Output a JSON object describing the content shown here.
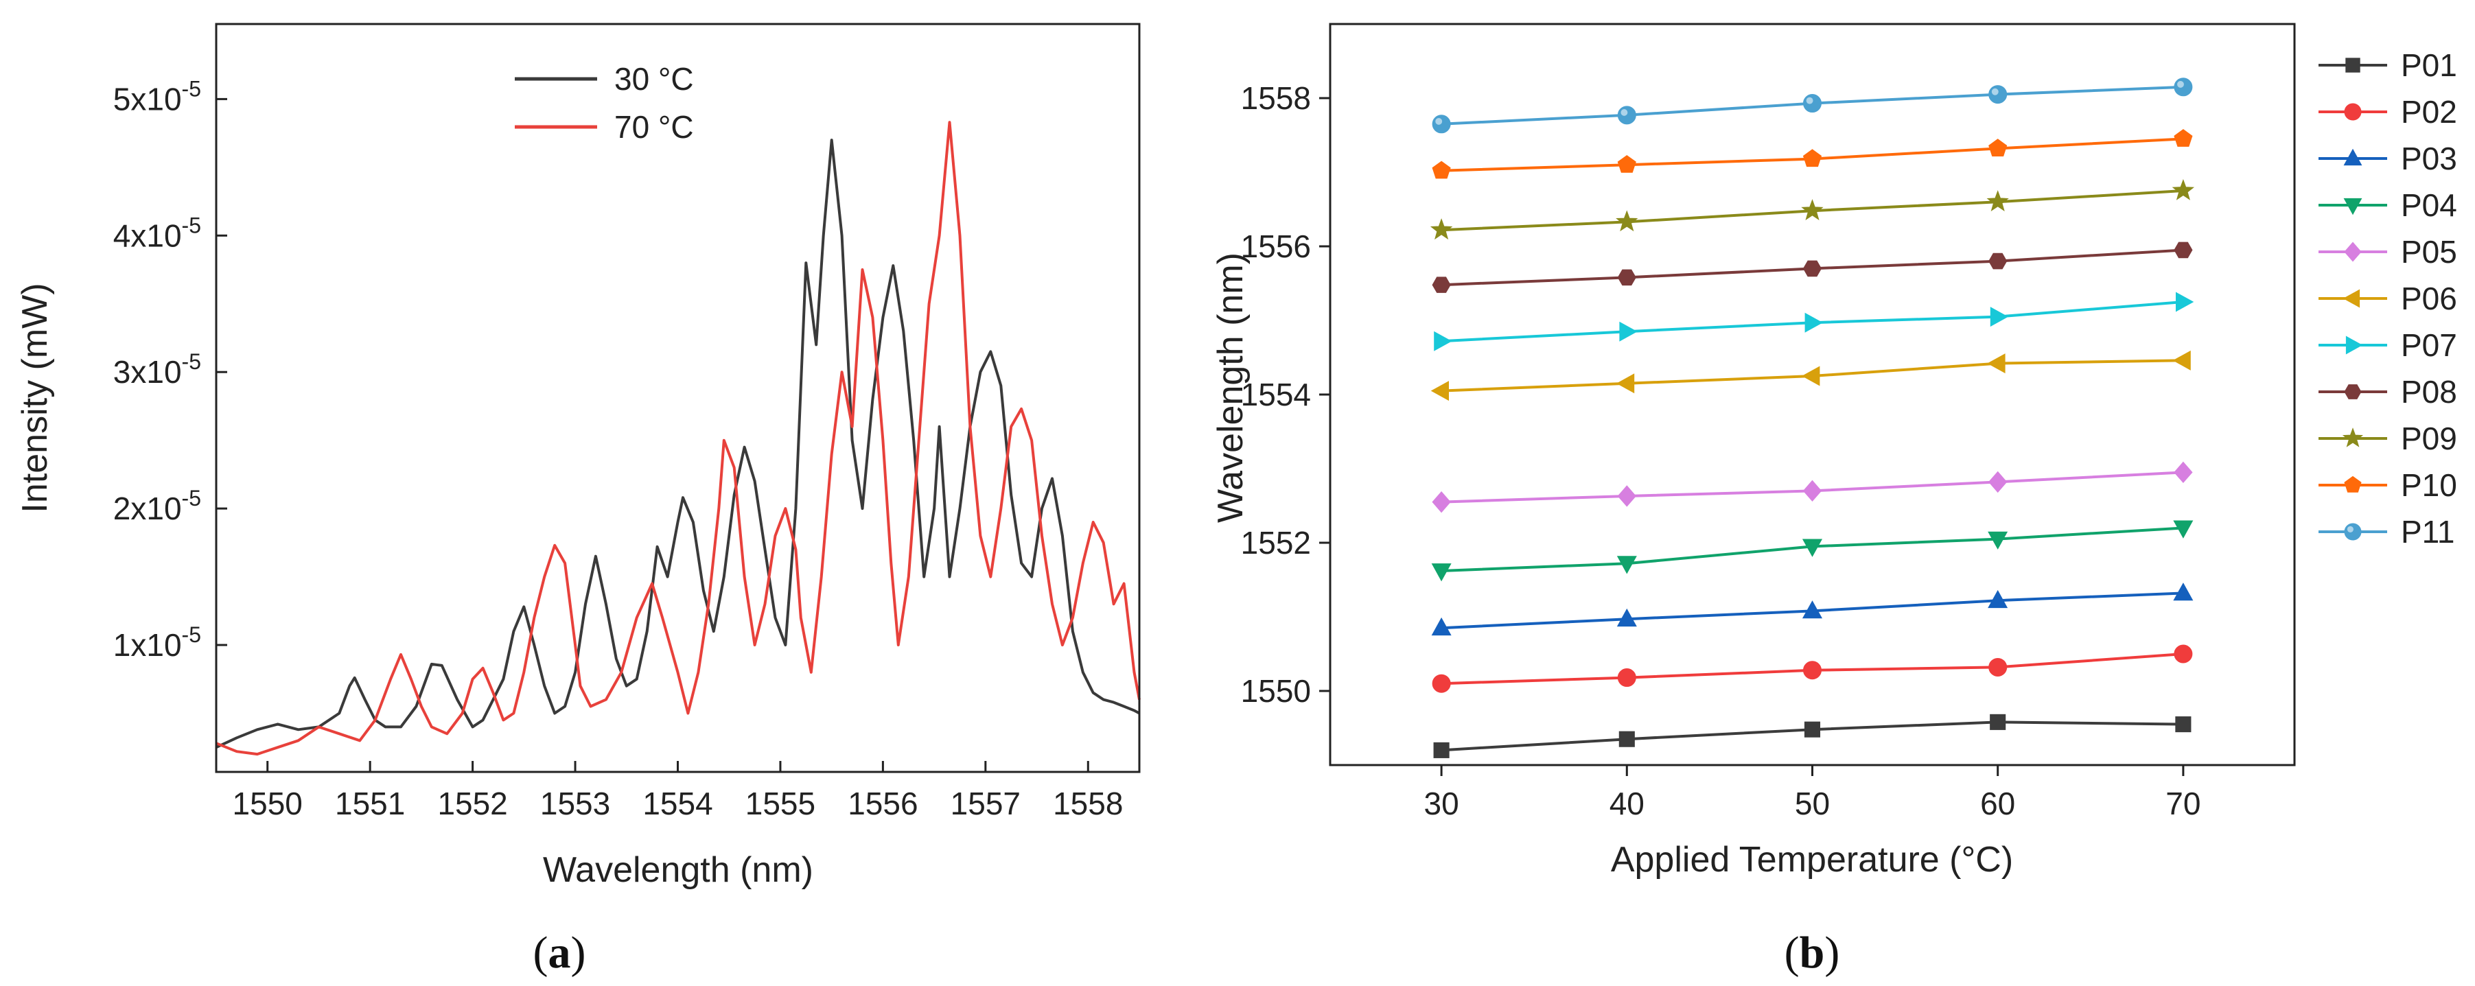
{
  "panels": [
    {
      "label_open": "(",
      "label": "a",
      "label_close": ")",
      "chart_data": {
        "type": "line",
        "title": "",
        "xlabel": "Wavelength (nm)",
        "ylabel": "Intensity (mW)",
        "xlim": [
          1549.5,
          1558.5
        ],
        "ylim": [
          7e-07,
          5.55e-05
        ],
        "xticks": [
          1550,
          1551,
          1552,
          1553,
          1554,
          1555,
          1556,
          1557,
          1558
        ],
        "yticks": [
          {
            "value": 1e-05,
            "mantissa": "1x10",
            "exp": "-5"
          },
          {
            "value": 2e-05,
            "mantissa": "2x10",
            "exp": "-5"
          },
          {
            "value": 3e-05,
            "mantissa": "3x10",
            "exp": "-5"
          },
          {
            "value": 4e-05,
            "mantissa": "4x10",
            "exp": "-5"
          },
          {
            "value": 5e-05,
            "mantissa": "5x10",
            "exp": "-5"
          }
        ],
        "legend_position": "top-center",
        "series": [
          {
            "name": "30 °C",
            "color": "#3a3a3a",
            "x": [
              1549.5,
              1549.7,
              1549.9,
              1550.1,
              1550.3,
              1550.5,
              1550.7,
              1550.8,
              1550.85,
              1550.95,
              1551.05,
              1551.15,
              1551.3,
              1551.45,
              1551.6,
              1551.7,
              1551.85,
              1552.0,
              1552.1,
              1552.2,
              1552.3,
              1552.4,
              1552.5,
              1552.6,
              1552.7,
              1552.8,
              1552.9,
              1553.0,
              1553.1,
              1553.2,
              1553.3,
              1553.4,
              1553.5,
              1553.6,
              1553.7,
              1553.8,
              1553.9,
              1554.0,
              1554.05,
              1554.15,
              1554.25,
              1554.35,
              1554.45,
              1554.55,
              1554.65,
              1554.75,
              1554.85,
              1554.95,
              1555.05,
              1555.15,
              1555.25,
              1555.35,
              1555.42,
              1555.5,
              1555.6,
              1555.7,
              1555.8,
              1555.9,
              1556.0,
              1556.1,
              1556.2,
              1556.3,
              1556.4,
              1556.5,
              1556.55,
              1556.65,
              1556.75,
              1556.85,
              1556.95,
              1557.05,
              1557.15,
              1557.25,
              1557.35,
              1557.45,
              1557.55,
              1557.65,
              1557.75,
              1557.85,
              1557.95,
              1558.05,
              1558.15,
              1558.25,
              1558.35,
              1558.45,
              1558.5
            ],
            "y": [
              2.5e-06,
              3.2e-06,
              3.8e-06,
              4.2e-06,
              3.8e-06,
              4e-06,
              5e-06,
              7e-06,
              7.6e-06,
              6e-06,
              4.5e-06,
              4e-06,
              4e-06,
              5.5e-06,
              8.6e-06,
              8.5e-06,
              6e-06,
              4e-06,
              4.5e-06,
              6e-06,
              7.5e-06,
              1.1e-05,
              1.28e-05,
              1e-05,
              7e-06,
              5e-06,
              5.5e-06,
              8e-06,
              1.3e-05,
              1.65e-05,
              1.3e-05,
              9e-06,
              7e-06,
              7.5e-06,
              1.1e-05,
              1.72e-05,
              1.5e-05,
              1.9e-05,
              2.08e-05,
              1.9e-05,
              1.4e-05,
              1.1e-05,
              1.5e-05,
              2.1e-05,
              2.45e-05,
              2.2e-05,
              1.7e-05,
              1.2e-05,
              1e-05,
              2e-05,
              3.8e-05,
              3.2e-05,
              4e-05,
              4.7e-05,
              4e-05,
              2.5e-05,
              2e-05,
              2.8e-05,
              3.4e-05,
              3.78e-05,
              3.3e-05,
              2.5e-05,
              1.5e-05,
              2e-05,
              2.6e-05,
              1.5e-05,
              2e-05,
              2.6e-05,
              3e-05,
              3.15e-05,
              2.9e-05,
              2.1e-05,
              1.6e-05,
              1.5e-05,
              2e-05,
              2.22e-05,
              1.8e-05,
              1.1e-05,
              8e-06,
              6.5e-06,
              6e-06,
              5.8e-06,
              5.5e-06,
              5.2e-06,
              5e-06
            ]
          },
          {
            "name": "70 °C",
            "color": "#e8413b",
            "x": [
              1549.5,
              1549.7,
              1549.9,
              1550.1,
              1550.3,
              1550.5,
              1550.7,
              1550.9,
              1551.05,
              1551.2,
              1551.3,
              1551.4,
              1551.5,
              1551.6,
              1551.75,
              1551.9,
              1552.0,
              1552.1,
              1552.2,
              1552.3,
              1552.4,
              1552.5,
              1552.6,
              1552.7,
              1552.8,
              1552.9,
              1553.0,
              1553.05,
              1553.15,
              1553.3,
              1553.45,
              1553.6,
              1553.75,
              1553.85,
              1554.0,
              1554.1,
              1554.2,
              1554.3,
              1554.4,
              1554.45,
              1554.55,
              1554.65,
              1554.75,
              1554.85,
              1554.95,
              1555.05,
              1555.15,
              1555.2,
              1555.3,
              1555.4,
              1555.5,
              1555.6,
              1555.7,
              1555.8,
              1555.9,
              1556.0,
              1556.08,
              1556.15,
              1556.25,
              1556.35,
              1556.45,
              1556.55,
              1556.65,
              1556.75,
              1556.85,
              1556.95,
              1557.05,
              1557.15,
              1557.25,
              1557.35,
              1557.45,
              1557.55,
              1557.65,
              1557.75,
              1557.85,
              1557.95,
              1558.05,
              1558.15,
              1558.25,
              1558.35,
              1558.45,
              1558.5
            ],
            "y": [
              2.8e-06,
              2.2e-06,
              2e-06,
              2.5e-06,
              3e-06,
              4e-06,
              3.5e-06,
              3e-06,
              4.5e-06,
              7.5e-06,
              9.3e-06,
              7.5e-06,
              5.5e-06,
              4e-06,
              3.5e-06,
              5e-06,
              7.5e-06,
              8.3e-06,
              6.5e-06,
              4.5e-06,
              5e-06,
              8e-06,
              1.2e-05,
              1.5e-05,
              1.73e-05,
              1.6e-05,
              1e-05,
              7e-06,
              5.5e-06,
              6e-06,
              8e-06,
              1.2e-05,
              1.45e-05,
              1.2e-05,
              8e-06,
              5e-06,
              8e-06,
              1.3e-05,
              2e-05,
              2.5e-05,
              2.3e-05,
              1.5e-05,
              1e-05,
              1.3e-05,
              1.8e-05,
              2e-05,
              1.7e-05,
              1.2e-05,
              8e-06,
              1.5e-05,
              2.4e-05,
              3e-05,
              2.6e-05,
              3.75e-05,
              3.4e-05,
              2.5e-05,
              1.6e-05,
              1e-05,
              1.5e-05,
              2.5e-05,
              3.5e-05,
              4e-05,
              4.83e-05,
              4e-05,
              2.6e-05,
              1.8e-05,
              1.5e-05,
              2e-05,
              2.6e-05,
              2.73e-05,
              2.5e-05,
              1.8e-05,
              1.3e-05,
              1e-05,
              1.2e-05,
              1.6e-05,
              1.9e-05,
              1.75e-05,
              1.3e-05,
              1.45e-05,
              8e-06,
              6e-06
            ]
          }
        ]
      }
    },
    {
      "label_open": "(",
      "label": "b",
      "label_close": ")",
      "chart_data": {
        "type": "line",
        "title": "",
        "xlabel": "Applied Temperature (°C)",
        "ylabel": "Wavelength (nm)",
        "xlim": [
          24,
          76
        ],
        "ylim": [
          1549,
          1559
        ],
        "xticks": [
          30,
          40,
          50,
          60,
          70
        ],
        "yticks": [
          1550,
          1552,
          1554,
          1556,
          1558
        ],
        "legend_position": "right",
        "x": [
          30,
          40,
          50,
          60,
          70
        ],
        "series": [
          {
            "name": "P01",
            "color": "#3c3c3c",
            "marker": "square",
            "values": [
              1549.2,
              1549.35,
              1549.48,
              1549.58,
              1549.55
            ]
          },
          {
            "name": "P02",
            "color": "#f03c3c",
            "marker": "circle",
            "values": [
              1550.1,
              1550.18,
              1550.28,
              1550.32,
              1550.5
            ]
          },
          {
            "name": "P03",
            "color": "#1560bd",
            "marker": "triangle-up",
            "values": [
              1550.85,
              1550.97,
              1551.08,
              1551.22,
              1551.32
            ]
          },
          {
            "name": "P04",
            "color": "#10a36b",
            "marker": "triangle-down",
            "values": [
              1551.62,
              1551.72,
              1551.95,
              1552.05,
              1552.2
            ]
          },
          {
            "name": "P05",
            "color": "#d77fe0",
            "marker": "diamond",
            "values": [
              1552.55,
              1552.63,
              1552.7,
              1552.82,
              1552.95
            ]
          },
          {
            "name": "P06",
            "color": "#d8a00c",
            "marker": "triangle-left",
            "values": [
              1554.05,
              1554.15,
              1554.25,
              1554.42,
              1554.46
            ]
          },
          {
            "name": "P07",
            "color": "#18c8d8",
            "marker": "triangle-right",
            "values": [
              1554.72,
              1554.85,
              1554.97,
              1555.05,
              1555.25
            ]
          },
          {
            "name": "P08",
            "color": "#7a3a3a",
            "marker": "hexagon",
            "values": [
              1555.48,
              1555.58,
              1555.7,
              1555.8,
              1555.95
            ]
          },
          {
            "name": "P09",
            "color": "#8a8a1a",
            "marker": "star",
            "values": [
              1556.22,
              1556.33,
              1556.48,
              1556.6,
              1556.75
            ]
          },
          {
            "name": "P10",
            "color": "#ff6a0a",
            "marker": "pentagon",
            "values": [
              1557.02,
              1557.1,
              1557.18,
              1557.32,
              1557.45
            ]
          },
          {
            "name": "P11",
            "color": "#4aa0d0",
            "marker": "sphere",
            "values": [
              1557.65,
              1557.77,
              1557.93,
              1558.05,
              1558.15
            ]
          }
        ]
      }
    }
  ]
}
